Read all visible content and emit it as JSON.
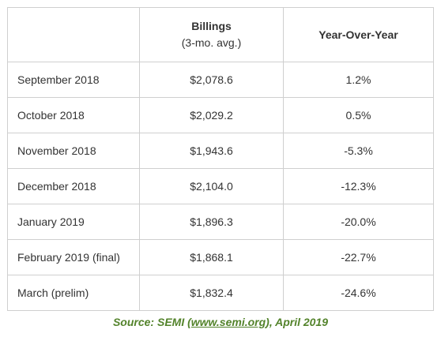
{
  "table": {
    "headers": {
      "col1": "",
      "col2_title": "Billings",
      "col2_sub": "(3-mo. avg.)",
      "col3": "Year-Over-Year"
    },
    "rows": [
      {
        "month": "September 2018",
        "billings": "$2,078.6",
        "yoy": "1.2%"
      },
      {
        "month": "October 2018",
        "billings": "$2,029.2",
        "yoy": "0.5%"
      },
      {
        "month": "November 2018",
        "billings": "$1,943.6",
        "yoy": "-5.3%"
      },
      {
        "month": "December 2018",
        "billings": "$2,104.0",
        "yoy": "-12.3%"
      },
      {
        "month": "January 2019",
        "billings": "$1,896.3",
        "yoy": "-20.0%"
      },
      {
        "month": "February 2019 (final)",
        "billings": "$1,868.1",
        "yoy": "-22.7%"
      },
      {
        "month": "March (prelim)",
        "billings": "$1,832.4",
        "yoy": "-24.6%"
      }
    ]
  },
  "caption": {
    "prefix": "Source: SEMI (",
    "link_text": "www.semi.org",
    "suffix": "), April 2019"
  },
  "colors": {
    "caption_green": "#53832b",
    "text": "#333333",
    "border": "#cfcfcf"
  }
}
